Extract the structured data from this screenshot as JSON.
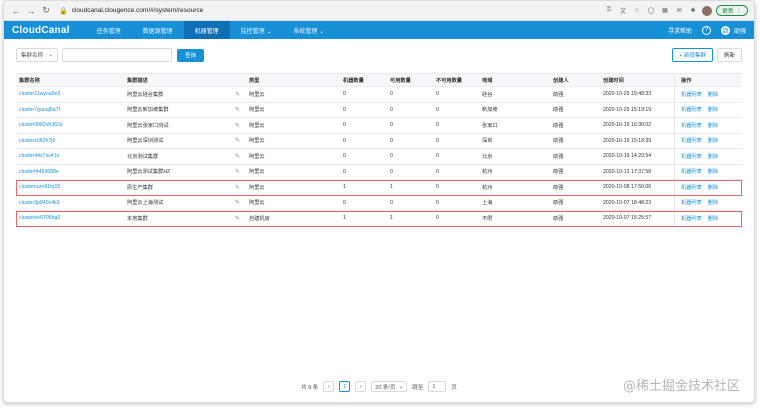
{
  "browser": {
    "url": "cloudcanal.clougence.com/#/system/resource",
    "update_label": "更新"
  },
  "app": {
    "logo": "CloudCanal",
    "menu": [
      {
        "label": "任务管理",
        "active": false
      },
      {
        "label": "数据源管理",
        "active": false
      },
      {
        "label": "机器管理",
        "active": true
      },
      {
        "label": "监控管理 ⌄",
        "active": false
      },
      {
        "label": "系统管理 ⌄",
        "active": false
      }
    ],
    "guide_label": "寻求帮助",
    "help_icon_text": "?",
    "user_name": "劭强",
    "user_avatar_text": "劭"
  },
  "toolbar": {
    "select_value": "集群名称",
    "search_placeholder": "",
    "query_label": "查询",
    "add_label": "+ 新增集群",
    "refresh_label": "刷新"
  },
  "table": {
    "headers": {
      "name": "集群名称",
      "desc": "集群描述",
      "type": "类型",
      "count": "机器数量",
      "avail": "可用数量",
      "unavail": "不可用数量",
      "region": "地域",
      "creator": "创建人",
      "time": "创建时间",
      "ops": "操作"
    },
    "op_list_label": "机器列表",
    "op_delete_label": "删除",
    "rows": [
      {
        "name": "cluster11wyoa5e2",
        "desc": "阿里云硅谷集群",
        "type": "阿里云",
        "count": "0",
        "avail": "0",
        "unavail": "0",
        "region": "硅谷",
        "creator": "劭强",
        "time": "2020-10-29 19:48:33",
        "highlight": false
      },
      {
        "name": "cluster7gauaj5a7f",
        "desc": "阿里云新加坡集群",
        "type": "阿里云",
        "count": "0",
        "avail": "0",
        "unavail": "0",
        "region": "新加坡",
        "creator": "劭强",
        "time": "2020-10-29 15:19:19",
        "highlight": false
      },
      {
        "name": "cluster0082vh362z",
        "desc": "阿里云张家口测试",
        "type": "阿里云",
        "count": "0",
        "avail": "0",
        "unavail": "0",
        "region": "张家口",
        "creator": "劭强",
        "time": "2020-10-19 16:30:02",
        "highlight": false
      },
      {
        "name": "clusterzt3t2h7j6",
        "desc": "阿里云深圳测试",
        "type": "阿里云",
        "count": "0",
        "avail": "0",
        "unavail": "0",
        "region": "深圳",
        "creator": "劭强",
        "time": "2020-10-19 15:18:39",
        "highlight": false
      },
      {
        "name": "cluster44s7ss41n",
        "desc": "北京测试集群",
        "type": "阿里云",
        "count": "0",
        "avail": "0",
        "unavail": "0",
        "region": "北京",
        "creator": "劭强",
        "time": "2020-10-19 14:20:54",
        "highlight": false
      },
      {
        "name": "clusterf4453688e",
        "desc": "阿里云测试集群HZ",
        "type": "阿里云",
        "count": "0",
        "avail": "0",
        "unavail": "0",
        "region": "杭州",
        "creator": "劭强",
        "time": "2020-10-13 17:37:58",
        "highlight": false
      },
      {
        "name": "clustercunr91tq15",
        "desc": "原生产集群",
        "type": "阿里云",
        "count": "1",
        "avail": "1",
        "unavail": "0",
        "region": "杭州",
        "creator": "劭强",
        "time": "2020-10-08 17:50:06",
        "highlight": true
      },
      {
        "name": "cluster3p849c4k9",
        "desc": "阿里云上海测试",
        "type": "阿里云",
        "count": "0",
        "avail": "0",
        "unavail": "0",
        "region": "上海",
        "creator": "劭强",
        "time": "2020-10-07 18:48:23",
        "highlight": false
      },
      {
        "name": "clusterbe6706bg3",
        "desc": "本地集群",
        "type": "自建机房",
        "count": "1",
        "avail": "1",
        "unavail": "0",
        "region": "不限",
        "creator": "劭强",
        "time": "2020-10-07 15:25:57",
        "highlight": true
      }
    ]
  },
  "pagination": {
    "total_label": "共 9 条",
    "prev": "‹",
    "current_page": "1",
    "next": "›",
    "page_size": "20 条/页",
    "goto_label": "跳至",
    "goto_value": "1",
    "page_suffix": "页"
  },
  "watermark": "@稀土掘金技术社区"
}
